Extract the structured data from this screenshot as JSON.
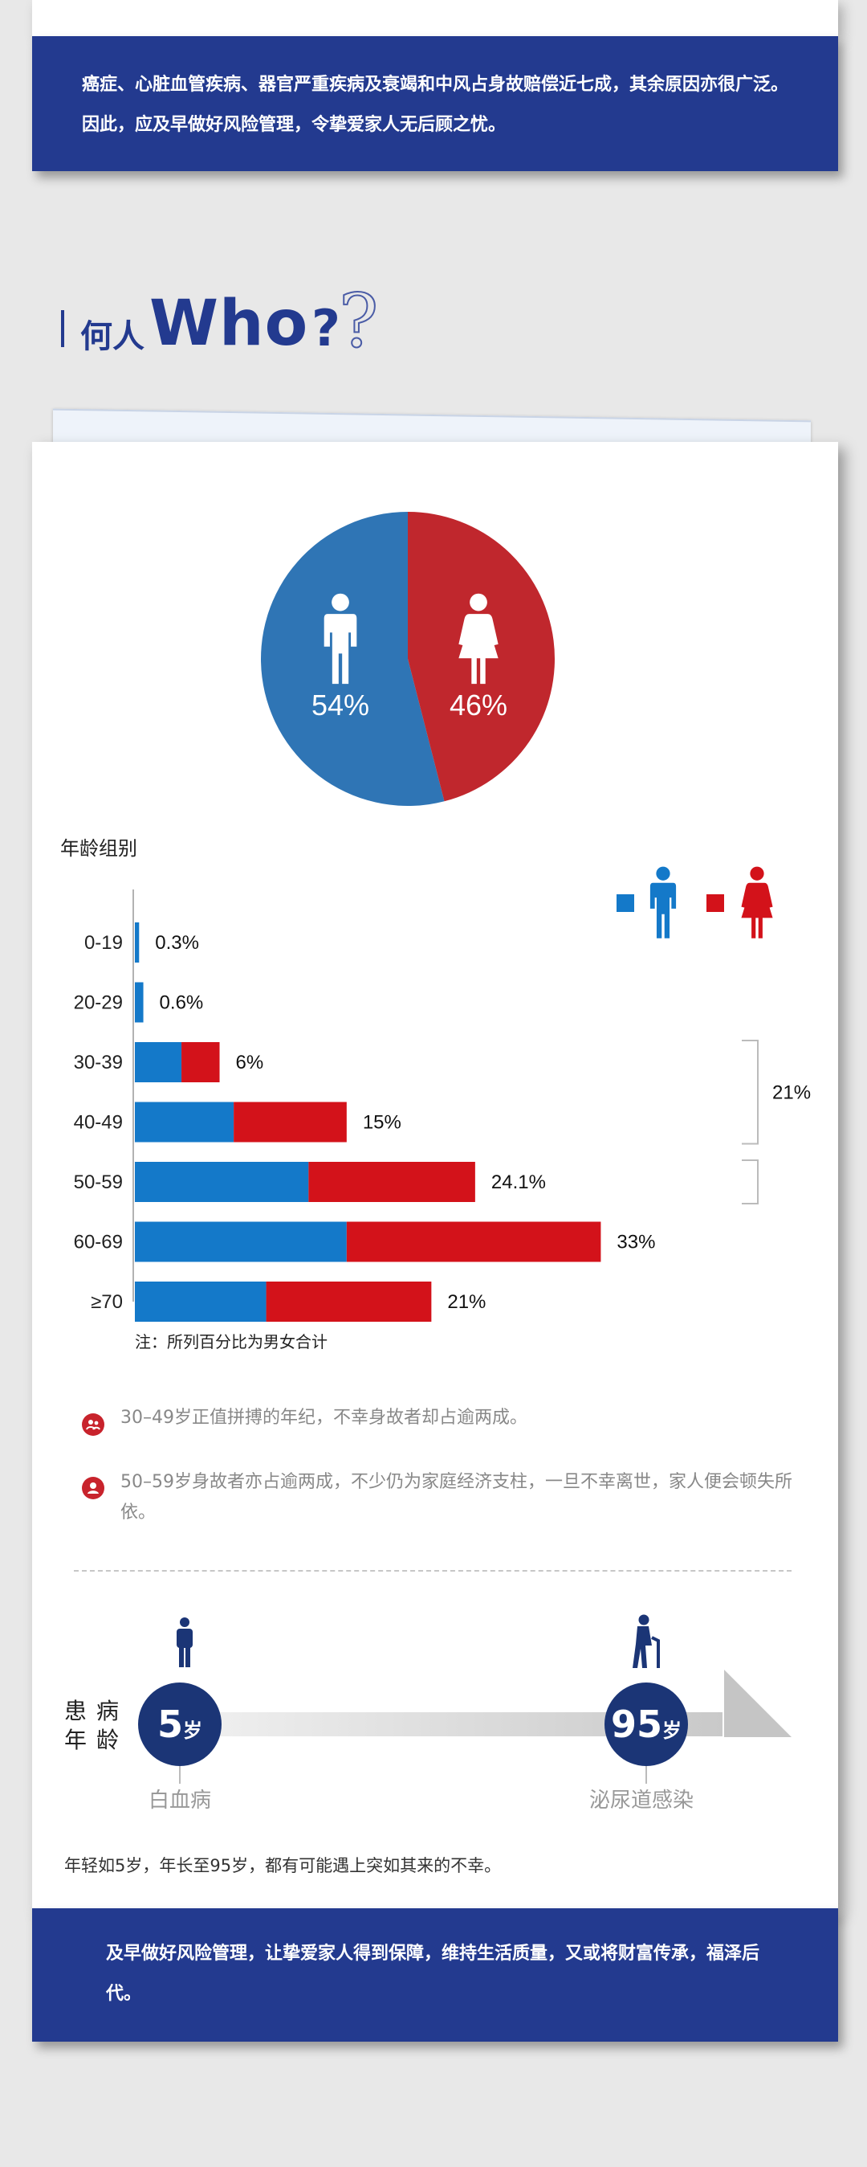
{
  "top_banner": {
    "text": "癌症、心脏血管疾病、器官严重疾病及衰竭和中风占身故赔偿近七成，其余原因亦很广泛。因此，应及早做好风险管理，令挚爱家人无后顾之忧。"
  },
  "heading": {
    "cn": "何人",
    "en": "Who",
    "q": "?",
    "q_outline": "?"
  },
  "colors": {
    "male": "#2f75b5",
    "female": "#c0272d",
    "bar_male": "#1479c9",
    "bar_female": "#d3121a",
    "navy": "#233a8f"
  },
  "chart_data": [
    {
      "type": "pie",
      "labels": [
        "男",
        "女"
      ],
      "values": [
        54,
        46
      ],
      "value_labels": [
        "54%",
        "46%"
      ],
      "icons": [
        "male-icon",
        "female-icon"
      ]
    },
    {
      "type": "bar",
      "orientation": "horizontal",
      "stacked": true,
      "title": "年龄组别",
      "categories": [
        "0-19",
        "20-29",
        "30-39",
        "40-49",
        "50-59",
        "60-69",
        "≥70"
      ],
      "series": [
        {
          "legend_icon": "male-icon",
          "values": [
            0.3,
            0.6,
            3.3,
            7.0,
            12.3,
            15.0,
            9.3
          ]
        },
        {
          "legend_icon": "female-icon",
          "values": [
            0,
            0,
            2.7,
            8.0,
            11.8,
            18.0,
            11.7
          ]
        }
      ],
      "totals": [
        "0.3%",
        "0.6%",
        "6%",
        "15%",
        "24.1%",
        "33%",
        "21%"
      ],
      "bracket_labels": [
        {
          "text": "21%",
          "categories": [
            "30-39",
            "40-49"
          ]
        },
        {
          "text": "",
          "categories": [
            "50-59"
          ]
        }
      ],
      "xlim": [
        0,
        34
      ],
      "note": "注：所列百分比为男女合计"
    }
  ],
  "points": [
    {
      "icon": "group-icon",
      "text": "30–49岁正值拼搏的年纪，不幸身故者却占逾两成。"
    },
    {
      "icon": "person-icon",
      "text": "50–59岁身故者亦占逾两成，不少仍为家庭经济支柱，一旦不幸离世，家人便会顿失所依。"
    }
  ],
  "timeline": {
    "side_label_1": "患病",
    "side_label_2": "年龄",
    "start": {
      "num": "5",
      "unit": "岁",
      "label": "白血病",
      "icon": "child-icon"
    },
    "end": {
      "num": "95",
      "unit": "岁",
      "label": "泌尿道感染",
      "icon": "elderly-icon"
    },
    "footer": "年轻如5岁，年长至95岁，都有可能遇上突如其来的不幸。"
  },
  "bottom_banner": {
    "text": "及早做好风险管理，让挚爱家人得到保障，维持生活质量，又或将财富传承，福泽后代。"
  }
}
